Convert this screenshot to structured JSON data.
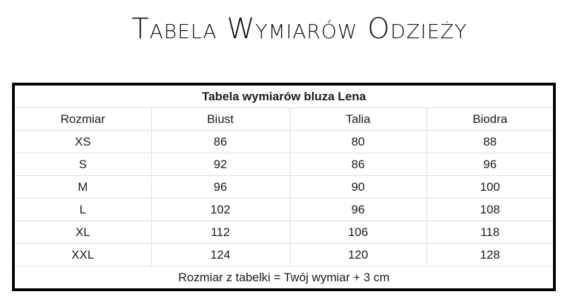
{
  "page_title": "Tabela Wymiarów Odzieży",
  "table": {
    "caption": "Tabela wymiarów bluza Lena",
    "headers": [
      "Rozmiar",
      "Biust",
      "Talia",
      "Biodra"
    ],
    "rows": [
      [
        "XS",
        "86",
        "80",
        "88"
      ],
      [
        "S",
        "92",
        "86",
        "96"
      ],
      [
        "M",
        "96",
        "90",
        "100"
      ],
      [
        "L",
        "102",
        "96",
        "108"
      ],
      [
        "XL",
        "112",
        "106",
        "118"
      ],
      [
        "XXL",
        "124",
        "120",
        "128"
      ]
    ],
    "footer": "Rozmiar z tabelki = Twój wymiar + 3 cm"
  }
}
